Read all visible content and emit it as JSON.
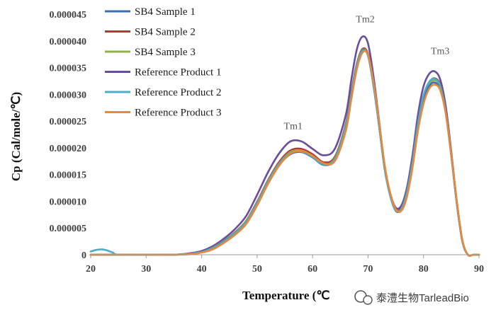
{
  "chart_data": {
    "type": "line",
    "title": "",
    "xlabel": "Temperature (℃",
    "ylabel": "Cp (Cal/mole/℃)",
    "xlim": [
      20,
      90
    ],
    "ylim": [
      0,
      4.5e-05
    ],
    "x_ticks": [
      20,
      30,
      40,
      50,
      60,
      70,
      80,
      90
    ],
    "y_ticks": [
      0,
      5e-06,
      1e-05,
      1.5e-05,
      2e-05,
      2.5e-05,
      3e-05,
      3.5e-05,
      4e-05,
      4.5e-05
    ],
    "y_tick_labels": [
      "0",
      "0.000005",
      "0.000010",
      "0.000015",
      "0.000020",
      "0.000025",
      "0.000030",
      "0.000035",
      "0.000040",
      "0.000045"
    ],
    "grid": false,
    "legend_position": "top-left",
    "annotations": [
      {
        "text": "Tm1",
        "x": 56.5,
        "y": 2.35e-05
      },
      {
        "text": "Tm2",
        "x": 69.5,
        "y": 4.35e-05
      },
      {
        "text": "Tm3",
        "x": 83,
        "y": 3.75e-05
      }
    ],
    "series": [
      {
        "name": "SB4 Sample 1",
        "color": "#3d6fb5",
        "x": [
          20,
          25,
          30,
          35,
          38,
          40,
          42,
          44,
          46,
          48,
          50,
          52,
          54,
          56,
          58,
          60,
          62,
          64,
          66,
          67,
          68,
          69,
          70,
          71,
          72,
          73,
          74,
          75,
          76,
          77,
          78,
          79,
          80,
          81,
          82,
          83,
          84,
          85,
          86,
          87,
          88,
          89,
          90
        ],
        "y": [
          0,
          0,
          0,
          0,
          2e-07,
          5e-07,
          1.2e-06,
          2.5e-06,
          4e-06,
          6e-06,
          9.5e-06,
          1.35e-05,
          1.68e-05,
          1.88e-05,
          1.92e-05,
          1.82e-05,
          1.68e-05,
          1.78e-05,
          2.4e-05,
          3e-05,
          3.55e-05,
          3.82e-05,
          3.72e-05,
          3.15e-05,
          2.4e-05,
          1.6e-05,
          1.1e-05,
          8.2e-06,
          8.5e-06,
          1.15e-05,
          1.7e-05,
          2.4e-05,
          2.9e-05,
          3.15e-05,
          3.22e-05,
          3.1e-05,
          2.65e-05,
          1.85e-05,
          9.5e-06,
          2.5e-06,
          0,
          0,
          0
        ]
      },
      {
        "name": "SB4 Sample 2",
        "color": "#b03a32",
        "x": [
          20,
          25,
          30,
          35,
          38,
          40,
          42,
          44,
          46,
          48,
          50,
          52,
          54,
          56,
          58,
          60,
          62,
          64,
          66,
          67,
          68,
          69,
          70,
          71,
          72,
          73,
          74,
          75,
          76,
          77,
          78,
          79,
          80,
          81,
          82,
          83,
          84,
          85,
          86,
          87,
          88,
          89,
          90
        ],
        "y": [
          0,
          0,
          0,
          0,
          2e-07,
          5e-07,
          1.3e-06,
          2.6e-06,
          4.2e-06,
          6.3e-06,
          9.9e-06,
          1.4e-05,
          1.74e-05,
          1.95e-05,
          1.98e-05,
          1.88e-05,
          1.73e-05,
          1.83e-05,
          2.45e-05,
          3.05e-05,
          3.58e-05,
          3.85e-05,
          3.75e-05,
          3.18e-05,
          2.42e-05,
          1.62e-05,
          1.12e-05,
          8.4e-06,
          8.8e-06,
          1.18e-05,
          1.73e-05,
          2.45e-05,
          2.95e-05,
          3.22e-05,
          3.3e-05,
          3.18e-05,
          2.7e-05,
          1.88e-05,
          9.7e-06,
          2.6e-06,
          0,
          0,
          0
        ]
      },
      {
        "name": "SB4 Sample 3",
        "color": "#8fb34a",
        "x": [
          20,
          25,
          30,
          35,
          38,
          40,
          42,
          44,
          46,
          48,
          50,
          52,
          54,
          56,
          58,
          60,
          62,
          64,
          66,
          67,
          68,
          69,
          70,
          71,
          72,
          73,
          74,
          75,
          76,
          77,
          78,
          79,
          80,
          81,
          82,
          83,
          84,
          85,
          86,
          87,
          88,
          89,
          90
        ],
        "y": [
          0,
          0,
          0,
          0,
          2e-07,
          5e-07,
          1.3e-06,
          2.6e-06,
          4.1e-06,
          6.2e-06,
          9.7e-06,
          1.38e-05,
          1.71e-05,
          1.92e-05,
          1.95e-05,
          1.85e-05,
          1.7e-05,
          1.8e-05,
          2.42e-05,
          3.02e-05,
          3.56e-05,
          3.83e-05,
          3.73e-05,
          3.16e-05,
          2.41e-05,
          1.61e-05,
          1.11e-05,
          8.3e-06,
          8.6e-06,
          1.16e-05,
          1.71e-05,
          2.43e-05,
          2.92e-05,
          3.18e-05,
          3.26e-05,
          3.14e-05,
          2.67e-05,
          1.86e-05,
          9.6e-06,
          2.5e-06,
          0,
          0,
          0
        ]
      },
      {
        "name": "Reference Product 1",
        "color": "#6a4c9c",
        "x": [
          20,
          25,
          30,
          35,
          38,
          40,
          42,
          44,
          46,
          48,
          50,
          52,
          54,
          56,
          58,
          60,
          62,
          64,
          66,
          67,
          68,
          69,
          70,
          71,
          72,
          73,
          74,
          75,
          76,
          77,
          78,
          79,
          80,
          81,
          82,
          83,
          84,
          85,
          86,
          87,
          88,
          89,
          90
        ],
        "y": [
          0,
          0,
          0,
          0,
          3e-07,
          7e-07,
          1.6e-06,
          3e-06,
          4.8e-06,
          7.2e-06,
          1.12e-05,
          1.55e-05,
          1.9e-05,
          2.12e-05,
          2.12e-05,
          1.98e-05,
          1.86e-05,
          1.98e-05,
          2.62e-05,
          3.28e-05,
          3.85e-05,
          4.08e-05,
          3.95e-05,
          3.32e-05,
          2.5e-05,
          1.66e-05,
          1.15e-05,
          8.8e-06,
          9.2e-06,
          1.25e-05,
          1.85e-05,
          2.62e-05,
          3.15e-05,
          3.38e-05,
          3.43e-05,
          3.28e-05,
          2.78e-05,
          1.93e-05,
          1e-05,
          2.7e-06,
          0,
          0,
          0
        ]
      },
      {
        "name": "Reference Product 2",
        "color": "#4bacc6",
        "x": [
          20,
          21,
          22,
          23,
          24,
          25,
          30,
          35,
          38,
          40,
          42,
          44,
          46,
          48,
          50,
          52,
          54,
          56,
          58,
          60,
          62,
          64,
          66,
          67,
          68,
          69,
          70,
          71,
          72,
          73,
          74,
          75,
          76,
          77,
          78,
          79,
          80,
          81,
          82,
          83,
          84,
          85,
          86,
          87,
          88,
          89,
          90
        ],
        "y": [
          6e-07,
          9e-07,
          1e-06,
          8e-07,
          4e-07,
          0,
          0,
          0,
          2e-07,
          5e-07,
          1.2e-06,
          2.4e-06,
          4e-06,
          6e-06,
          9.6e-06,
          1.37e-05,
          1.7e-05,
          1.9e-05,
          1.93e-05,
          1.83e-05,
          1.69e-05,
          1.79e-05,
          2.4e-05,
          3e-05,
          3.54e-05,
          3.81e-05,
          3.72e-05,
          3.15e-05,
          2.4e-05,
          1.61e-05,
          1.11e-05,
          8.3e-06,
          8.6e-06,
          1.17e-05,
          1.73e-05,
          2.46e-05,
          2.98e-05,
          3.23e-05,
          3.29e-05,
          3.16e-05,
          2.68e-05,
          1.86e-05,
          9.6e-06,
          2.5e-06,
          0,
          0,
          0
        ]
      },
      {
        "name": "Reference Product 3",
        "color": "#e8883a",
        "x": [
          20,
          25,
          30,
          35,
          38,
          40,
          42,
          44,
          46,
          48,
          50,
          52,
          54,
          56,
          58,
          60,
          62,
          64,
          66,
          67,
          68,
          69,
          70,
          71,
          72,
          73,
          74,
          75,
          76,
          77,
          78,
          79,
          80,
          81,
          82,
          83,
          84,
          85,
          86,
          87,
          88,
          89,
          90
        ],
        "y": [
          0,
          0,
          0,
          0,
          1e-07,
          4e-07,
          1e-06,
          2.2e-06,
          3.7e-06,
          5.7e-06,
          9.2e-06,
          1.33e-05,
          1.67e-05,
          1.89e-05,
          1.94e-05,
          1.85e-05,
          1.71e-05,
          1.75e-05,
          2.32e-05,
          2.92e-05,
          3.48e-05,
          3.78e-05,
          3.74e-05,
          3.22e-05,
          2.48e-05,
          1.68e-05,
          1.15e-05,
          8.5e-06,
          8.2e-06,
          1.08e-05,
          1.62e-05,
          2.32e-05,
          2.82e-05,
          3.1e-05,
          3.18e-05,
          3.08e-05,
          2.65e-05,
          1.88e-05,
          1e-05,
          2.8e-06,
          0,
          0,
          0
        ]
      }
    ]
  },
  "watermark": {
    "text": "泰澧生物TarleadBio"
  }
}
